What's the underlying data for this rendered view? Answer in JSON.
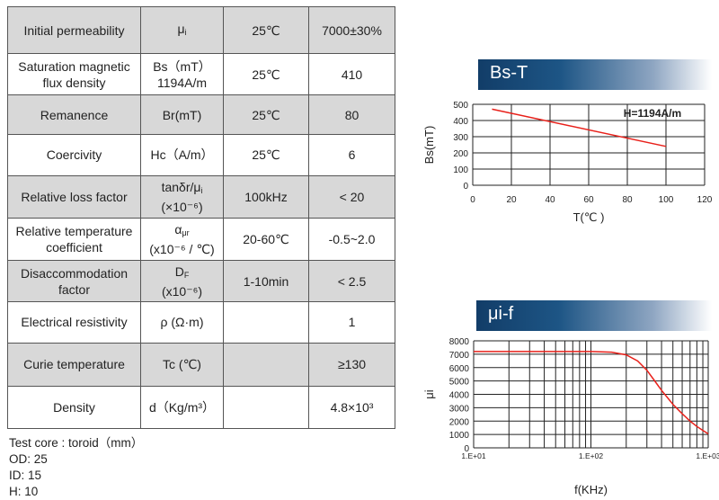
{
  "table": {
    "rows": [
      {
        "property": "Initial permeability",
        "symbol": "μ",
        "symbol_sub": "i",
        "condition": "25℃",
        "value": "7000±30%"
      },
      {
        "property": "Saturation magnetic flux density",
        "symbol": "Bs（mT）",
        "symbol_line2": "1194A/m",
        "condition": "25℃",
        "value": "410"
      },
      {
        "property": "Remanence",
        "symbol": "Br(mT)",
        "condition": "25℃",
        "value": "80"
      },
      {
        "property": "Coercivity",
        "symbol": "Hc（A/m）",
        "condition": "25℃",
        "value": "6"
      },
      {
        "property": "Relative loss factor",
        "symbol": "tanδr/μ",
        "symbol_sub": "i",
        "symbol_line2": "(×10⁻⁶)",
        "condition": "100kHz",
        "value": "< 20"
      },
      {
        "property": "Relative temperature coefficient",
        "symbol": "α",
        "symbol_sub": "μr",
        "symbol_line2": "(x10⁻⁶ / ℃)",
        "condition": "20-60℃",
        "value": "-0.5~2.0"
      },
      {
        "property": "Disaccommodation factor",
        "symbol": "D",
        "symbol_sub": "F",
        "symbol_line2": "(x10⁻⁶)",
        "condition": "1-10min",
        "value": "< 2.5"
      },
      {
        "property": "Electrical resistivity",
        "symbol": "ρ (Ω·m)",
        "condition": "",
        "value": "1"
      },
      {
        "property": "Curie temperature",
        "symbol": "Tc (℃)",
        "condition": "",
        "value": "≥130"
      },
      {
        "property": "Density",
        "symbol": "d（Kg/m³）",
        "condition": "",
        "value": "4.8×10³"
      }
    ]
  },
  "test_core": {
    "title": "Test core : toroid（mm）",
    "od": "OD: 25",
    "id": "ID: 15",
    "h": "H: 10"
  },
  "chart_data": [
    {
      "type": "line",
      "title": "Bs-T",
      "xlabel": "T(℃ )",
      "ylabel": "Bs(mT)",
      "xlim": [
        0,
        120
      ],
      "ylim": [
        0,
        500
      ],
      "xticks": [
        0,
        20,
        40,
        60,
        80,
        100,
        120
      ],
      "yticks": [
        0,
        100,
        200,
        300,
        400,
        500
      ],
      "annotation": "H=1194A/m",
      "grid": true,
      "line_color": "#e8201a",
      "series": [
        {
          "x": [
            10,
            100
          ],
          "y": [
            470,
            240
          ]
        }
      ]
    },
    {
      "type": "line",
      "title": "μi-f",
      "xlabel": "f(KHz)",
      "ylabel": "μi",
      "xscale": "log",
      "xlim": [
        10,
        1000
      ],
      "ylim": [
        0,
        8000
      ],
      "xticks": [
        10,
        100,
        1000
      ],
      "xticklabels": [
        "1.E+01",
        "1.E+02",
        "1.E+03"
      ],
      "yticks": [
        0,
        1000,
        2000,
        3000,
        4000,
        5000,
        6000,
        7000,
        8000
      ],
      "grid": true,
      "line_color": "#e8201a",
      "series": [
        {
          "x": [
            10,
            100,
            150,
            200,
            250,
            300,
            350,
            400,
            450,
            500,
            600,
            700,
            800,
            900,
            1000
          ],
          "y": [
            7200,
            7200,
            7150,
            6950,
            6500,
            5800,
            5000,
            4300,
            3750,
            3250,
            2550,
            2000,
            1600,
            1300,
            1050
          ]
        }
      ]
    }
  ]
}
